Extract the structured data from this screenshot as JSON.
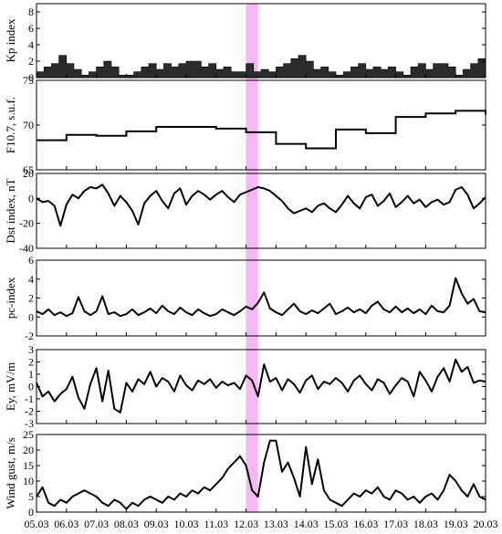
{
  "chart_data": {
    "type": "line",
    "x_axis": {
      "ticks": [
        "05.03",
        "06.03",
        "07.03",
        "08.03",
        "09.03",
        "10.03",
        "11.03",
        "12.03",
        "13.03",
        "14.03",
        "15.03",
        "16.03",
        "17.03",
        "18.03",
        "19.03",
        "20.03"
      ],
      "start_day": 5,
      "end_day": 20
    },
    "highlight": {
      "from": 12.0,
      "to": 12.4,
      "color": "#f6b8f4"
    },
    "panels": [
      {
        "id": "kp",
        "ylabel": "Kp index",
        "style": "filled",
        "ylim": [
          0,
          9
        ],
        "yticks": [
          0,
          2,
          4,
          6,
          8
        ],
        "x": [
          5.0,
          5.25,
          5.5,
          5.75,
          6.0,
          6.25,
          6.5,
          6.75,
          7.0,
          7.25,
          7.5,
          7.75,
          8.0,
          8.25,
          8.5,
          8.75,
          9.0,
          9.25,
          9.5,
          9.75,
          10.0,
          10.25,
          10.5,
          10.75,
          11.0,
          11.25,
          11.5,
          11.75,
          12.0,
          12.25,
          12.5,
          12.75,
          13.0,
          13.25,
          13.5,
          13.75,
          14.0,
          14.25,
          14.5,
          14.75,
          15.0,
          15.25,
          15.5,
          15.75,
          16.0,
          16.25,
          16.5,
          16.75,
          17.0,
          17.25,
          17.5,
          17.75,
          18.0,
          18.25,
          18.5,
          18.75,
          19.0,
          19.25,
          19.5,
          19.75,
          20.0
        ],
        "values": [
          0.7,
          1.3,
          1.7,
          2.7,
          1.7,
          1.0,
          0.3,
          0.7,
          1.3,
          2.0,
          1.3,
          0.3,
          0.3,
          0.7,
          1.3,
          1.7,
          1.0,
          1.7,
          1.3,
          1.7,
          2.0,
          2.0,
          1.3,
          1.7,
          1.0,
          1.3,
          0.7,
          0.7,
          1.7,
          0.7,
          1.0,
          0.7,
          1.3,
          1.7,
          2.3,
          2.7,
          2.0,
          1.0,
          1.3,
          0.7,
          0.3,
          0.7,
          1.3,
          1.7,
          1.0,
          1.3,
          1.0,
          1.3,
          0.7,
          0.3,
          1.3,
          1.7,
          1.0,
          1.7,
          1.7,
          1.3,
          0.3,
          1.0,
          1.7,
          2.3,
          1.7
        ]
      },
      {
        "id": "f107",
        "ylabel": "F10.7, s.u.f.",
        "style": "step",
        "ylim": [
          65,
          75
        ],
        "yticks": [
          65,
          70,
          75
        ],
        "x": [
          5.0,
          6.0,
          7.0,
          8.0,
          9.0,
          10.0,
          11.0,
          12.0,
          13.0,
          14.0,
          15.0,
          16.0,
          17.0,
          18.0,
          19.0,
          20.0
        ],
        "values": [
          68.3,
          68.9,
          68.8,
          69.3,
          69.8,
          69.8,
          69.6,
          69.2,
          67.9,
          67.4,
          69.5,
          69.1,
          70.9,
          71.3,
          71.6,
          71.2
        ]
      },
      {
        "id": "dst",
        "ylabel": "Dst index, nT",
        "style": "line",
        "ylim": [
          -40,
          20
        ],
        "yticks": [
          -40,
          -20,
          0,
          20
        ],
        "x": [
          5.0,
          5.2,
          5.4,
          5.6,
          5.8,
          6.0,
          6.2,
          6.4,
          6.6,
          6.8,
          7.0,
          7.2,
          7.4,
          7.6,
          7.8,
          8.0,
          8.2,
          8.4,
          8.6,
          8.8,
          9.0,
          9.2,
          9.4,
          9.6,
          9.8,
          10.0,
          10.2,
          10.4,
          10.6,
          10.8,
          11.0,
          11.2,
          11.4,
          11.6,
          11.8,
          12.0,
          12.2,
          12.4,
          12.6,
          12.8,
          13.0,
          13.2,
          13.4,
          13.6,
          13.8,
          14.0,
          14.2,
          14.4,
          14.6,
          14.8,
          15.0,
          15.2,
          15.4,
          15.6,
          15.8,
          16.0,
          16.2,
          16.4,
          16.6,
          16.8,
          17.0,
          17.2,
          17.4,
          17.6,
          17.8,
          18.0,
          18.2,
          18.4,
          18.6,
          18.8,
          19.0,
          19.2,
          19.4,
          19.6,
          19.8,
          20.0
        ],
        "values": [
          0,
          -3,
          -2,
          -6,
          -22,
          -5,
          3,
          0,
          6,
          9,
          8,
          11,
          4,
          -6,
          2,
          -3,
          -10,
          -21,
          -4,
          2,
          6,
          -2,
          -8,
          4,
          8,
          -5,
          2,
          6,
          3,
          -1,
          3,
          6,
          1,
          -3,
          3,
          5,
          7,
          9,
          8,
          6,
          2,
          -2,
          -8,
          -12,
          -10,
          -8,
          -11,
          -6,
          -4,
          -8,
          -11,
          -5,
          2,
          -4,
          -8,
          1,
          3,
          -6,
          -2,
          4,
          -7,
          -3,
          2,
          -4,
          -1,
          -7,
          -3,
          -1,
          -5,
          -3,
          7,
          9,
          3,
          -8,
          -4,
          1
        ]
      },
      {
        "id": "pc",
        "ylabel": "pc-index",
        "style": "line",
        "ylim": [
          -2,
          6
        ],
        "yticks": [
          -2,
          0,
          2,
          4,
          6
        ],
        "x": [
          5.0,
          5.2,
          5.4,
          5.6,
          5.8,
          6.0,
          6.2,
          6.4,
          6.6,
          6.8,
          7.0,
          7.2,
          7.4,
          7.6,
          7.8,
          8.0,
          8.2,
          8.4,
          8.6,
          8.8,
          9.0,
          9.2,
          9.4,
          9.6,
          9.8,
          10.0,
          10.2,
          10.4,
          10.6,
          10.8,
          11.0,
          11.2,
          11.4,
          11.6,
          11.8,
          12.0,
          12.2,
          12.4,
          12.6,
          12.8,
          13.0,
          13.2,
          13.4,
          13.6,
          13.8,
          14.0,
          14.2,
          14.4,
          14.6,
          14.8,
          15.0,
          15.2,
          15.4,
          15.6,
          15.8,
          16.0,
          16.2,
          16.4,
          16.6,
          16.8,
          17.0,
          17.2,
          17.4,
          17.6,
          17.8,
          18.0,
          18.2,
          18.4,
          18.6,
          18.8,
          19.0,
          19.2,
          19.4,
          19.6,
          19.8,
          20.0
        ],
        "values": [
          0.6,
          0.3,
          0.8,
          0.2,
          0.5,
          0.1,
          0.4,
          2.1,
          0.6,
          0.2,
          0.6,
          2.2,
          0.3,
          0.5,
          0.1,
          0.3,
          0.8,
          0.2,
          0.5,
          0.9,
          0.4,
          1.2,
          0.6,
          0.3,
          1.0,
          0.5,
          0.2,
          0.8,
          0.4,
          0.1,
          0.3,
          0.8,
          0.5,
          0.2,
          0.6,
          1.1,
          0.8,
          1.5,
          2.6,
          0.9,
          0.5,
          0.2,
          0.8,
          1.4,
          0.6,
          0.3,
          0.7,
          0.4,
          0.9,
          1.4,
          0.3,
          0.6,
          1.0,
          0.5,
          0.8,
          0.4,
          1.2,
          1.6,
          0.8,
          0.5,
          1.1,
          0.5,
          0.9,
          0.4,
          0.8,
          0.3,
          1.2,
          0.6,
          0.5,
          1.2,
          4.1,
          2.5,
          1.4,
          1.9,
          0.6,
          0.5
        ]
      },
      {
        "id": "ey",
        "ylabel": "Ey, mV/m",
        "style": "line",
        "ylim": [
          -3,
          3
        ],
        "yticks": [
          -3,
          -2,
          -1,
          0,
          1,
          2,
          3
        ],
        "x": [
          5.0,
          5.2,
          5.4,
          5.6,
          5.8,
          6.0,
          6.2,
          6.4,
          6.6,
          6.8,
          7.0,
          7.2,
          7.4,
          7.6,
          7.8,
          8.0,
          8.2,
          8.4,
          8.6,
          8.8,
          9.0,
          9.2,
          9.4,
          9.6,
          9.8,
          10.0,
          10.2,
          10.4,
          10.6,
          10.8,
          11.0,
          11.2,
          11.4,
          11.6,
          11.8,
          12.0,
          12.2,
          12.4,
          12.6,
          12.8,
          13.0,
          13.2,
          13.4,
          13.6,
          13.8,
          14.0,
          14.2,
          14.4,
          14.6,
          14.8,
          15.0,
          15.2,
          15.4,
          15.6,
          15.8,
          16.0,
          16.2,
          16.4,
          16.6,
          16.8,
          17.0,
          17.2,
          17.4,
          17.6,
          17.8,
          18.0,
          18.2,
          18.4,
          18.6,
          18.8,
          19.0,
          19.2,
          19.4,
          19.6,
          19.8,
          20.0
        ],
        "values": [
          0.3,
          -0.8,
          -0.4,
          -1.2,
          -0.6,
          -0.2,
          0.8,
          -0.9,
          -1.8,
          0.2,
          1.5,
          -1.2,
          1.3,
          -1.8,
          -2.1,
          0.3,
          -0.4,
          0.6,
          0.2,
          1.2,
          0.0,
          0.7,
          0.4,
          -0.4,
          0.9,
          0.1,
          -0.3,
          0.5,
          0.2,
          0.6,
          -0.1,
          0.4,
          0.1,
          0.3,
          -0.2,
          0.9,
          0.5,
          -0.8,
          1.8,
          0.4,
          0.7,
          -0.3,
          0.6,
          0.2,
          -0.5,
          0.5,
          0.9,
          -0.2,
          0.4,
          0.2,
          0.7,
          0.3,
          -0.4,
          0.5,
          0.9,
          0.2,
          -0.3,
          0.6,
          0.3,
          -0.6,
          0.1,
          0.7,
          0.4,
          -0.8,
          1.2,
          0.5,
          -0.4,
          0.8,
          1.5,
          0.4,
          2.2,
          1.2,
          1.6,
          0.3,
          0.5,
          0.4
        ]
      },
      {
        "id": "wind",
        "ylabel": "Wind gust, m/s",
        "style": "line",
        "ylim": [
          0,
          25
        ],
        "yticks": [
          0,
          5,
          10,
          15,
          20,
          25
        ],
        "x": [
          5.0,
          5.2,
          5.4,
          5.6,
          5.8,
          6.0,
          6.2,
          6.4,
          6.6,
          6.8,
          7.0,
          7.2,
          7.4,
          7.6,
          7.8,
          8.0,
          8.2,
          8.4,
          8.6,
          8.8,
          9.0,
          9.2,
          9.4,
          9.6,
          9.8,
          10.0,
          10.2,
          10.4,
          10.6,
          10.8,
          11.0,
          11.2,
          11.4,
          11.6,
          11.8,
          12.0,
          12.2,
          12.4,
          12.6,
          12.8,
          13.0,
          13.2,
          13.4,
          13.6,
          13.8,
          14.0,
          14.2,
          14.4,
          14.6,
          14.8,
          15.0,
          15.2,
          15.4,
          15.6,
          15.8,
          16.0,
          16.2,
          16.4,
          16.6,
          16.8,
          17.0,
          17.2,
          17.4,
          17.6,
          17.8,
          18.0,
          18.2,
          18.4,
          18.6,
          18.8,
          19.0,
          19.2,
          19.4,
          19.6,
          19.8,
          20.0
        ],
        "values": [
          5,
          8,
          3,
          2,
          4,
          3,
          5,
          6,
          7,
          6,
          5,
          3,
          2,
          4,
          3,
          1,
          3,
          2,
          4,
          5,
          4,
          3,
          5,
          4,
          6,
          5,
          7,
          6,
          8,
          7,
          9,
          11,
          14,
          16,
          18,
          15,
          7,
          5,
          16,
          23,
          23,
          13,
          16,
          11,
          5,
          21,
          9,
          17,
          7,
          4,
          3,
          2,
          4,
          6,
          5,
          7,
          6,
          8,
          5,
          4,
          7,
          6,
          4,
          5,
          3,
          5,
          6,
          4,
          7,
          12,
          10,
          7,
          5,
          9,
          5,
          4
        ]
      }
    ]
  }
}
